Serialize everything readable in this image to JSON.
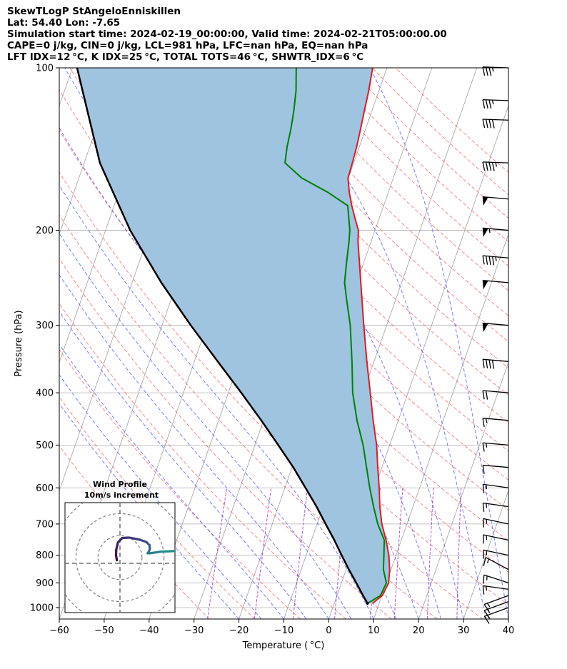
{
  "header": {
    "line1": "SkewTLogP StAngeloEnniskillen",
    "line2": "Lat: 54.40   Lon: -7.65",
    "line3": "Simulation start time: 2024-02-19_00:00:00, Valid time: 2024-02-21T05:00:00.00",
    "line4": "CAPE=0 j/kg, CIN=0 j/kg, LCL=981 hPa, LFC=nan hPa, EQ=nan hPa",
    "line5": "LFT IDX=12 °C, K IDX=25 °C, TOTAL TOTS=46 °C, SHWTR_IDX=6 °C"
  },
  "chart_data": {
    "type": "line",
    "subtype": "skew-t log-p",
    "xlabel": "Temperature ( °C)",
    "ylabel": "Pressure (hPa)",
    "xlim": [
      -60,
      40
    ],
    "ylim": [
      1050,
      100
    ],
    "y_scale": "log",
    "x_ticks": [
      -60,
      -50,
      -40,
      -30,
      -20,
      -10,
      0,
      10,
      20,
      30,
      40
    ],
    "x_tick_labels": [
      "−60",
      "−50",
      "−40",
      "−30",
      "−20",
      "−10",
      "0",
      "10",
      "20",
      "30",
      "40"
    ],
    "y_ticks": [
      1000,
      900,
      800,
      700,
      600,
      500,
      400,
      300,
      200,
      100
    ],
    "y_tick_labels": [
      "1000",
      "900",
      "800",
      "700",
      "600",
      "500",
      "400",
      "300",
      "200",
      "100"
    ],
    "grid": true,
    "colors": {
      "temperature": "#e41a1c",
      "dewpoint": "#008000",
      "parcel": "#000000",
      "fill": "#9ec4e0",
      "dry_adiabat": "#f25555",
      "moist_adiabat": "#4a55f0",
      "mixing_ratio": "#9b3fc4",
      "isotherm": "#a0a0a0"
    },
    "series": [
      {
        "key": "temperature",
        "pressure": [
          982,
          950,
          900,
          850,
          800,
          750,
          700,
          650,
          600,
          550,
          500,
          450,
          400,
          350,
          300,
          270,
          250,
          230,
          210,
          200,
          190,
          180,
          170,
          160,
          150,
          140,
          130,
          120,
          110,
          100
        ],
        "values": [
          8.5,
          10.1,
          10.5,
          9.7,
          8.4,
          6.6,
          4.4,
          2.6,
          1.0,
          -0.9,
          -2.9,
          -5.6,
          -8.4,
          -11.6,
          -15.1,
          -17.4,
          -19.1,
          -20.9,
          -22.9,
          -23.7,
          -25.4,
          -27.1,
          -28.7,
          -30.1,
          -30.3,
          -30.6,
          -31.1,
          -31.7,
          -32.3,
          -33.2
        ]
      },
      {
        "key": "dewpoint",
        "pressure": [
          982,
          950,
          900,
          850,
          800,
          750,
          700,
          650,
          600,
          550,
          500,
          450,
          400,
          350,
          300,
          270,
          250,
          230,
          210,
          200,
          180,
          170,
          160,
          150,
          140,
          130,
          120,
          110,
          100
        ],
        "values": [
          7.4,
          9.7,
          10.0,
          8.3,
          7.3,
          6.2,
          3.5,
          1.2,
          -1.1,
          -3.4,
          -5.9,
          -9.2,
          -12.3,
          -14.9,
          -18.1,
          -20.8,
          -22.7,
          -23.8,
          -24.9,
          -25.6,
          -28.0,
          -33.5,
          -40.4,
          -45.3,
          -46.1,
          -46.6,
          -47.4,
          -48.5,
          -50.2
        ]
      },
      {
        "key": "parcel",
        "pressure": [
          982,
          950,
          900,
          850,
          800,
          750,
          700,
          650,
          600,
          550,
          500,
          450,
          400,
          350,
          300,
          250,
          200,
          150,
          100
        ],
        "values": [
          7.4,
          5.8,
          3.3,
          0.6,
          -2.1,
          -4.9,
          -8.1,
          -11.5,
          -15.4,
          -19.7,
          -24.8,
          -30.5,
          -37.1,
          -44.8,
          -53.6,
          -63.5,
          -74.5,
          -86.5,
          -99.0
        ]
      }
    ],
    "barbs": {
      "pressure": [
        1000,
        975,
        950,
        925,
        900,
        850,
        800,
        750,
        700,
        650,
        600,
        550,
        500,
        450,
        400,
        350,
        300,
        250,
        225,
        200,
        175,
        150,
        125,
        115,
        100
      ],
      "speed_kt": [
        15,
        15,
        15,
        15,
        15,
        15,
        15,
        15,
        15,
        15,
        15,
        10,
        15,
        15,
        20,
        40,
        50,
        50,
        45,
        55,
        50,
        45,
        40,
        35,
        35
      ],
      "barb_angle_deg": [
        -20,
        -20,
        -20,
        8,
        18,
        28,
        12,
        12,
        12,
        8,
        8,
        5,
        5,
        5,
        5,
        5,
        5,
        5,
        5,
        5,
        5,
        2,
        2,
        2,
        2
      ]
    },
    "inset": {
      "title": "Wind Profile",
      "subtitle": "10m/s increment",
      "type": "hodograph",
      "rings_ms": [
        10,
        20,
        30,
        40
      ],
      "lim": 25,
      "u": [
        -1.4,
        -1.8,
        -1.7,
        -0.9,
        1.0,
        4.1,
        8.8,
        12.0,
        13.4,
        13.6,
        13.3,
        12.6,
        13.8,
        18.5,
        20.5,
        25.0
      ],
      "v": [
        -1.2,
        1.1,
        3.6,
        6.9,
        8.9,
        9.1,
        8.2,
        7.1,
        5.7,
        4.1,
        3.1,
        2.0,
        2.0,
        2.7,
        2.8,
        3.0
      ]
    }
  }
}
